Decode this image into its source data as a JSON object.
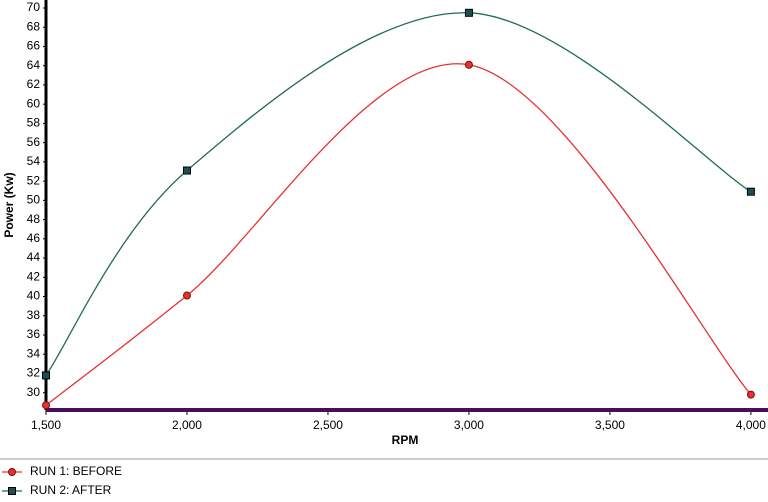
{
  "chart_data": {
    "type": "line",
    "x": [
      1500,
      2000,
      3000,
      4000
    ],
    "xlabel": "RPM",
    "ylabel": "Power (Kw)",
    "series": [
      {
        "name": "RUN 1: BEFORE",
        "color": "#e8302c",
        "marker": "circle",
        "values": [
          28.7,
          40.1,
          64.1,
          29.8
        ]
      },
      {
        "name": "RUN 2: AFTER",
        "color": "#1f6e4a",
        "marker": "square",
        "values": [
          31.8,
          53.1,
          69.5,
          50.9
        ]
      }
    ],
    "xlim": [
      1500,
      4050
    ],
    "xticks": [
      {
        "value": 1500,
        "label": "1,500"
      },
      {
        "value": 2000,
        "label": "2,000"
      },
      {
        "value": 2500,
        "label": "2,500"
      },
      {
        "value": 3000,
        "label": "3,000"
      },
      {
        "value": 3500,
        "label": "3,500"
      },
      {
        "value": 4000,
        "label": "4,000"
      }
    ],
    "ylim": [
      28.2,
      70
    ],
    "yticks": [
      30,
      32,
      34,
      36,
      38,
      40,
      42,
      44,
      46,
      48,
      50,
      52,
      54,
      56,
      58,
      60,
      62,
      64,
      66,
      68,
      70
    ],
    "grid": false,
    "smooth": true
  }
}
